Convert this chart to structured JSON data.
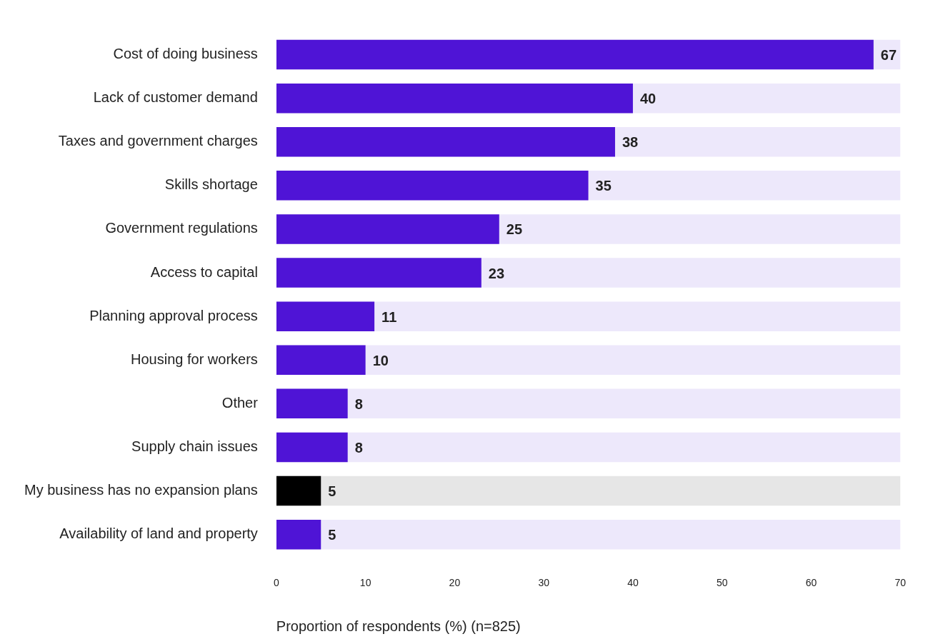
{
  "chart_data": {
    "type": "bar",
    "orientation": "horizontal",
    "xlabel": "Proportion of respondents (%) (n=825)",
    "categories": [
      "Cost of doing business",
      "Lack of customer demand",
      "Taxes and government charges",
      "Skills shortage",
      "Government regulations",
      "Access to capital",
      "Planning approval process",
      "Housing for workers",
      "Other",
      "Supply chain issues",
      "My business has no expansion plans",
      "Availability of land and property"
    ],
    "values": [
      67,
      40,
      38,
      35,
      25,
      23,
      11,
      10,
      8,
      8,
      5,
      5
    ],
    "colors": [
      "#4f14d6",
      "#4f14d6",
      "#4f14d6",
      "#4f14d6",
      "#4f14d6",
      "#4f14d6",
      "#4f14d6",
      "#4f14d6",
      "#4f14d6",
      "#4f14d6",
      "#000000",
      "#4f14d6"
    ],
    "xlim": [
      0,
      70
    ],
    "xticks": [
      0,
      10,
      20,
      30,
      40,
      50,
      60,
      70
    ],
    "grid": false,
    "legend": false,
    "data_labels": true
  }
}
